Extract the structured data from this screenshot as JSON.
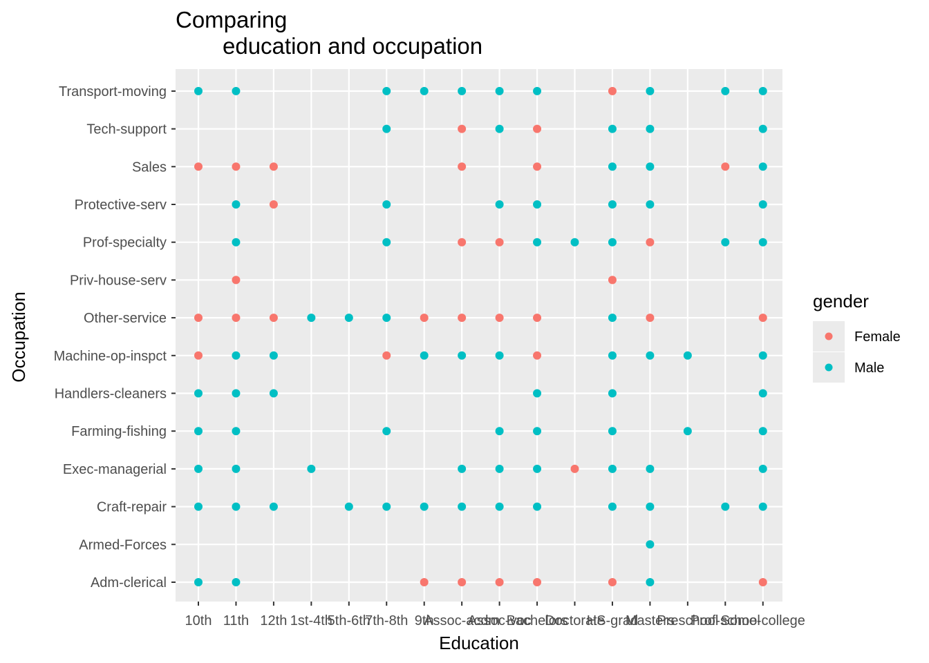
{
  "chart_data": {
    "type": "scatter",
    "title_line1": "Comparing",
    "title_line2": "education and occupation",
    "xlabel": "Education",
    "ylabel": "Occupation",
    "x_categories": [
      "10th",
      "11th",
      "12th",
      "1st-4th",
      "5th-6th",
      "7th-8th",
      "9th",
      "Assoc-acdm",
      "Assoc-voc",
      "Bachelors",
      "Doctorate",
      "HS-grad",
      "Masters",
      "Preschool",
      "Prof-school",
      "Some-college"
    ],
    "y_categories": [
      "Adm-clerical",
      "Armed-Forces",
      "Craft-repair",
      "Exec-managerial",
      "Farming-fishing",
      "Handlers-cleaners",
      "Machine-op-inspct",
      "Other-service",
      "Priv-house-serv",
      "Prof-specialty",
      "Protective-serv",
      "Sales",
      "Tech-support",
      "Transport-moving"
    ],
    "grid": true,
    "legend": {
      "title": "gender",
      "placement": "right",
      "entries": [
        {
          "name": "Female",
          "color": "#F8766D"
        },
        {
          "name": "Male",
          "color": "#00BFC4"
        }
      ]
    },
    "series": [
      {
        "name": "Female",
        "color": "#F8766D",
        "points": [
          [
            "9th",
            "Adm-clerical"
          ],
          [
            "Assoc-acdm",
            "Adm-clerical"
          ],
          [
            "Assoc-voc",
            "Adm-clerical"
          ],
          [
            "Bachelors",
            "Adm-clerical"
          ],
          [
            "HS-grad",
            "Adm-clerical"
          ],
          [
            "Some-college",
            "Adm-clerical"
          ],
          [
            "Doctorate",
            "Exec-managerial"
          ],
          [
            "10th",
            "Machine-op-inspct"
          ],
          [
            "7th-8th",
            "Machine-op-inspct"
          ],
          [
            "Bachelors",
            "Machine-op-inspct"
          ],
          [
            "10th",
            "Other-service"
          ],
          [
            "11th",
            "Other-service"
          ],
          [
            "12th",
            "Other-service"
          ],
          [
            "9th",
            "Other-service"
          ],
          [
            "Assoc-acdm",
            "Other-service"
          ],
          [
            "Assoc-voc",
            "Other-service"
          ],
          [
            "Bachelors",
            "Other-service"
          ],
          [
            "Masters",
            "Other-service"
          ],
          [
            "Some-college",
            "Other-service"
          ],
          [
            "11th",
            "Priv-house-serv"
          ],
          [
            "HS-grad",
            "Priv-house-serv"
          ],
          [
            "Assoc-acdm",
            "Prof-specialty"
          ],
          [
            "Assoc-voc",
            "Prof-specialty"
          ],
          [
            "Masters",
            "Prof-specialty"
          ],
          [
            "12th",
            "Protective-serv"
          ],
          [
            "10th",
            "Sales"
          ],
          [
            "11th",
            "Sales"
          ],
          [
            "12th",
            "Sales"
          ],
          [
            "Assoc-acdm",
            "Sales"
          ],
          [
            "Bachelors",
            "Sales"
          ],
          [
            "Prof-school",
            "Sales"
          ],
          [
            "Assoc-acdm",
            "Tech-support"
          ],
          [
            "Bachelors",
            "Tech-support"
          ],
          [
            "HS-grad",
            "Transport-moving"
          ]
        ]
      },
      {
        "name": "Male",
        "color": "#00BFC4",
        "points": [
          [
            "10th",
            "Adm-clerical"
          ],
          [
            "11th",
            "Adm-clerical"
          ],
          [
            "Masters",
            "Adm-clerical"
          ],
          [
            "Masters",
            "Armed-Forces"
          ],
          [
            "10th",
            "Craft-repair"
          ],
          [
            "11th",
            "Craft-repair"
          ],
          [
            "12th",
            "Craft-repair"
          ],
          [
            "5th-6th",
            "Craft-repair"
          ],
          [
            "7th-8th",
            "Craft-repair"
          ],
          [
            "9th",
            "Craft-repair"
          ],
          [
            "Assoc-acdm",
            "Craft-repair"
          ],
          [
            "Assoc-voc",
            "Craft-repair"
          ],
          [
            "Bachelors",
            "Craft-repair"
          ],
          [
            "HS-grad",
            "Craft-repair"
          ],
          [
            "Masters",
            "Craft-repair"
          ],
          [
            "Prof-school",
            "Craft-repair"
          ],
          [
            "Some-college",
            "Craft-repair"
          ],
          [
            "10th",
            "Exec-managerial"
          ],
          [
            "11th",
            "Exec-managerial"
          ],
          [
            "1st-4th",
            "Exec-managerial"
          ],
          [
            "Assoc-acdm",
            "Exec-managerial"
          ],
          [
            "Assoc-voc",
            "Exec-managerial"
          ],
          [
            "Bachelors",
            "Exec-managerial"
          ],
          [
            "HS-grad",
            "Exec-managerial"
          ],
          [
            "Masters",
            "Exec-managerial"
          ],
          [
            "Some-college",
            "Exec-managerial"
          ],
          [
            "10th",
            "Farming-fishing"
          ],
          [
            "11th",
            "Farming-fishing"
          ],
          [
            "7th-8th",
            "Farming-fishing"
          ],
          [
            "Assoc-voc",
            "Farming-fishing"
          ],
          [
            "Bachelors",
            "Farming-fishing"
          ],
          [
            "HS-grad",
            "Farming-fishing"
          ],
          [
            "Preschool",
            "Farming-fishing"
          ],
          [
            "Some-college",
            "Farming-fishing"
          ],
          [
            "10th",
            "Handlers-cleaners"
          ],
          [
            "11th",
            "Handlers-cleaners"
          ],
          [
            "12th",
            "Handlers-cleaners"
          ],
          [
            "Bachelors",
            "Handlers-cleaners"
          ],
          [
            "HS-grad",
            "Handlers-cleaners"
          ],
          [
            "Some-college",
            "Handlers-cleaners"
          ],
          [
            "11th",
            "Machine-op-inspct"
          ],
          [
            "12th",
            "Machine-op-inspct"
          ],
          [
            "9th",
            "Machine-op-inspct"
          ],
          [
            "Assoc-acdm",
            "Machine-op-inspct"
          ],
          [
            "Assoc-voc",
            "Machine-op-inspct"
          ],
          [
            "HS-grad",
            "Machine-op-inspct"
          ],
          [
            "Masters",
            "Machine-op-inspct"
          ],
          [
            "Preschool",
            "Machine-op-inspct"
          ],
          [
            "Some-college",
            "Machine-op-inspct"
          ],
          [
            "1st-4th",
            "Other-service"
          ],
          [
            "5th-6th",
            "Other-service"
          ],
          [
            "7th-8th",
            "Other-service"
          ],
          [
            "HS-grad",
            "Other-service"
          ],
          [
            "11th",
            "Prof-specialty"
          ],
          [
            "7th-8th",
            "Prof-specialty"
          ],
          [
            "Bachelors",
            "Prof-specialty"
          ],
          [
            "Doctorate",
            "Prof-specialty"
          ],
          [
            "HS-grad",
            "Prof-specialty"
          ],
          [
            "Prof-school",
            "Prof-specialty"
          ],
          [
            "Some-college",
            "Prof-specialty"
          ],
          [
            "11th",
            "Protective-serv"
          ],
          [
            "7th-8th",
            "Protective-serv"
          ],
          [
            "Assoc-voc",
            "Protective-serv"
          ],
          [
            "Bachelors",
            "Protective-serv"
          ],
          [
            "HS-grad",
            "Protective-serv"
          ],
          [
            "Masters",
            "Protective-serv"
          ],
          [
            "Some-college",
            "Protective-serv"
          ],
          [
            "HS-grad",
            "Sales"
          ],
          [
            "Masters",
            "Sales"
          ],
          [
            "Some-college",
            "Sales"
          ],
          [
            "7th-8th",
            "Tech-support"
          ],
          [
            "Assoc-voc",
            "Tech-support"
          ],
          [
            "HS-grad",
            "Tech-support"
          ],
          [
            "Masters",
            "Tech-support"
          ],
          [
            "Some-college",
            "Tech-support"
          ],
          [
            "10th",
            "Transport-moving"
          ],
          [
            "11th",
            "Transport-moving"
          ],
          [
            "7th-8th",
            "Transport-moving"
          ],
          [
            "9th",
            "Transport-moving"
          ],
          [
            "Assoc-acdm",
            "Transport-moving"
          ],
          [
            "Assoc-voc",
            "Transport-moving"
          ],
          [
            "Bachelors",
            "Transport-moving"
          ],
          [
            "Masters",
            "Transport-moving"
          ],
          [
            "Prof-school",
            "Transport-moving"
          ],
          [
            "Some-college",
            "Transport-moving"
          ]
        ]
      }
    ]
  }
}
